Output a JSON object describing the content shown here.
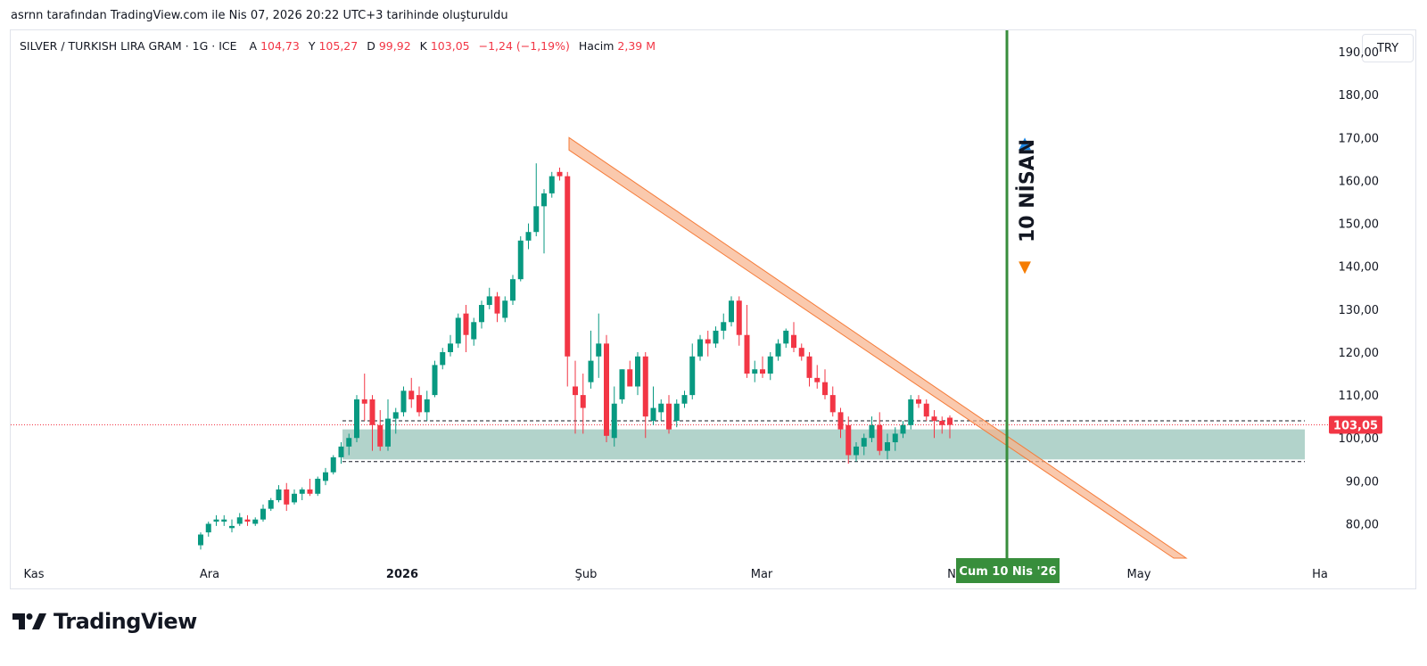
{
  "snapshot_header": "asrnn tarafından TradingView.com ile Nis 07, 2026 20:22 UTC+3 tarihinde oluşturuldu",
  "legend": {
    "symbol": "SILVER / TURKISH LIRA GRAM · 1G · ICE",
    "open_label": "A",
    "open": "104,73",
    "high_label": "Y",
    "high": "105,27",
    "low_label": "D",
    "low": "99,92",
    "close_label": "K",
    "close": "103,05",
    "change": "−1,24 (−1,19%)",
    "volume_label": "Hacim",
    "volume": "2,39 M"
  },
  "currency_button": "TRY",
  "brand": "TradingView",
  "colors": {
    "up": "#089981",
    "down": "#f23645",
    "zone": "#7eb6a8",
    "channel": "#f8b28a",
    "event_line": "#388e3c",
    "price_tag": "#f23645"
  },
  "chart_data": {
    "type": "candlestick",
    "ylim": [
      72,
      195
    ],
    "y_ticks": [
      "80,00",
      "90,00",
      "100,00",
      "110,00",
      "120,00",
      "130,00",
      "140,00",
      "150,00",
      "160,00",
      "170,00",
      "180,00",
      "190,00"
    ],
    "x_ticks": [
      "Kas",
      "Ara",
      "2026",
      "Şub",
      "Mar",
      "N",
      "May",
      "Ha"
    ],
    "last_price_label": "103,05",
    "event_line_label": "Cum 10 Nis '26",
    "event_annotation": "10 NİSAN",
    "support_zone": [
      95,
      102
    ],
    "dashed_levels": [
      104,
      94.5
    ],
    "candles": [
      {
        "o": 75,
        "h": 78,
        "l": 74,
        "c": 77.5
      },
      {
        "o": 78,
        "h": 80.5,
        "l": 77,
        "c": 80
      },
      {
        "o": 80.5,
        "h": 82,
        "l": 79.5,
        "c": 81
      },
      {
        "o": 80.5,
        "h": 82,
        "l": 79.5,
        "c": 81
      },
      {
        "o": 79,
        "h": 81,
        "l": 78,
        "c": 79.5
      },
      {
        "o": 80,
        "h": 82.5,
        "l": 79.5,
        "c": 81.5
      },
      {
        "o": 81,
        "h": 82,
        "l": 79.5,
        "c": 80.5
      },
      {
        "o": 80,
        "h": 81.5,
        "l": 79.5,
        "c": 81
      },
      {
        "o": 81,
        "h": 84.5,
        "l": 80.5,
        "c": 83.5
      },
      {
        "o": 83.5,
        "h": 86,
        "l": 83,
        "c": 85.5
      },
      {
        "o": 85.5,
        "h": 89,
        "l": 85,
        "c": 88
      },
      {
        "o": 88,
        "h": 89.5,
        "l": 83,
        "c": 84.5
      },
      {
        "o": 85,
        "h": 88,
        "l": 84.5,
        "c": 87
      },
      {
        "o": 87,
        "h": 88.5,
        "l": 85.5,
        "c": 88
      },
      {
        "o": 88,
        "h": 90.5,
        "l": 86.5,
        "c": 87
      },
      {
        "o": 87,
        "h": 91,
        "l": 86.5,
        "c": 90.5
      },
      {
        "o": 90,
        "h": 93,
        "l": 89,
        "c": 92
      },
      {
        "o": 92,
        "h": 96,
        "l": 91.5,
        "c": 95.5
      },
      {
        "o": 95.5,
        "h": 99,
        "l": 94,
        "c": 98
      },
      {
        "o": 98,
        "h": 101,
        "l": 96,
        "c": 100
      },
      {
        "o": 100,
        "h": 110,
        "l": 99,
        "c": 109
      },
      {
        "o": 109,
        "h": 115,
        "l": 104,
        "c": 108
      },
      {
        "o": 109,
        "h": 110,
        "l": 97,
        "c": 103
      },
      {
        "o": 103,
        "h": 106.5,
        "l": 97,
        "c": 98
      },
      {
        "o": 98,
        "h": 109,
        "l": 97,
        "c": 104.5
      },
      {
        "o": 104.5,
        "h": 107,
        "l": 101,
        "c": 106
      },
      {
        "o": 106,
        "h": 112,
        "l": 105,
        "c": 111
      },
      {
        "o": 111,
        "h": 114,
        "l": 107,
        "c": 109
      },
      {
        "o": 110,
        "h": 112,
        "l": 105,
        "c": 106
      },
      {
        "o": 106,
        "h": 111,
        "l": 104,
        "c": 109
      },
      {
        "o": 110,
        "h": 118,
        "l": 109.5,
        "c": 117
      },
      {
        "o": 117,
        "h": 121,
        "l": 116,
        "c": 120
      },
      {
        "o": 120,
        "h": 124,
        "l": 119,
        "c": 122
      },
      {
        "o": 122,
        "h": 129,
        "l": 121,
        "c": 128
      },
      {
        "o": 129,
        "h": 131,
        "l": 120,
        "c": 124
      },
      {
        "o": 123,
        "h": 128,
        "l": 121.5,
        "c": 127
      },
      {
        "o": 127,
        "h": 132,
        "l": 125.5,
        "c": 131
      },
      {
        "o": 131,
        "h": 135,
        "l": 130,
        "c": 133
      },
      {
        "o": 133,
        "h": 134,
        "l": 127,
        "c": 129
      },
      {
        "o": 128,
        "h": 133,
        "l": 127,
        "c": 132
      },
      {
        "o": 132,
        "h": 138,
        "l": 131,
        "c": 137
      },
      {
        "o": 137,
        "h": 147,
        "l": 136.5,
        "c": 146
      },
      {
        "o": 146,
        "h": 150,
        "l": 144,
        "c": 148
      },
      {
        "o": 148,
        "h": 164,
        "l": 147,
        "c": 154
      },
      {
        "o": 154,
        "h": 158,
        "l": 143,
        "c": 157
      },
      {
        "o": 157,
        "h": 162,
        "l": 156,
        "c": 161
      },
      {
        "o": 162,
        "h": 163,
        "l": 160,
        "c": 161
      },
      {
        "o": 161,
        "h": 162,
        "l": 112,
        "c": 119
      },
      {
        "o": 112,
        "h": 118,
        "l": 101,
        "c": 110
      },
      {
        "o": 110,
        "h": 115,
        "l": 101,
        "c": 107
      },
      {
        "o": 113,
        "h": 125,
        "l": 111.5,
        "c": 118
      },
      {
        "o": 119,
        "h": 129,
        "l": 114,
        "c": 122
      },
      {
        "o": 122,
        "h": 124,
        "l": 99,
        "c": 100.5
      },
      {
        "o": 100,
        "h": 112,
        "l": 98,
        "c": 108
      },
      {
        "o": 109,
        "h": 116,
        "l": 108,
        "c": 116
      },
      {
        "o": 116,
        "h": 118,
        "l": 112,
        "c": 112
      },
      {
        "o": 112,
        "h": 120,
        "l": 110,
        "c": 119
      },
      {
        "o": 119,
        "h": 120,
        "l": 100,
        "c": 105
      },
      {
        "o": 104,
        "h": 112,
        "l": 103,
        "c": 107
      },
      {
        "o": 106,
        "h": 109,
        "l": 104,
        "c": 108
      },
      {
        "o": 108,
        "h": 110,
        "l": 101,
        "c": 102
      },
      {
        "o": 104,
        "h": 109,
        "l": 102.5,
        "c": 108
      },
      {
        "o": 108,
        "h": 111,
        "l": 107,
        "c": 110
      },
      {
        "o": 110,
        "h": 122,
        "l": 109,
        "c": 119
      },
      {
        "o": 119,
        "h": 124,
        "l": 118,
        "c": 123
      },
      {
        "o": 123,
        "h": 125,
        "l": 119,
        "c": 122
      },
      {
        "o": 122,
        "h": 126,
        "l": 121,
        "c": 125
      },
      {
        "o": 125,
        "h": 129,
        "l": 123,
        "c": 127
      },
      {
        "o": 127,
        "h": 133,
        "l": 126,
        "c": 132
      },
      {
        "o": 132,
        "h": 133,
        "l": 121.5,
        "c": 124
      },
      {
        "o": 124,
        "h": 131,
        "l": 114,
        "c": 115
      },
      {
        "o": 115,
        "h": 118,
        "l": 113,
        "c": 116
      },
      {
        "o": 116,
        "h": 119,
        "l": 114,
        "c": 115
      },
      {
        "o": 115,
        "h": 120,
        "l": 113.5,
        "c": 119
      },
      {
        "o": 119,
        "h": 123,
        "l": 118,
        "c": 122
      },
      {
        "o": 122,
        "h": 125.5,
        "l": 121,
        "c": 125
      },
      {
        "o": 124,
        "h": 127,
        "l": 120,
        "c": 121
      },
      {
        "o": 121,
        "h": 122,
        "l": 118,
        "c": 119
      },
      {
        "o": 119,
        "h": 120,
        "l": 112,
        "c": 114
      },
      {
        "o": 114,
        "h": 117,
        "l": 111.5,
        "c": 113
      },
      {
        "o": 113,
        "h": 116,
        "l": 109,
        "c": 110
      },
      {
        "o": 110,
        "h": 112,
        "l": 105,
        "c": 106
      },
      {
        "o": 106,
        "h": 107,
        "l": 100,
        "c": 102
      },
      {
        "o": 103,
        "h": 105,
        "l": 94,
        "c": 96
      },
      {
        "o": 96,
        "h": 99,
        "l": 94.5,
        "c": 98
      },
      {
        "o": 98,
        "h": 101,
        "l": 96,
        "c": 100
      },
      {
        "o": 100,
        "h": 105,
        "l": 99,
        "c": 103
      },
      {
        "o": 103,
        "h": 106,
        "l": 96,
        "c": 97
      },
      {
        "o": 97,
        "h": 101,
        "l": 95,
        "c": 99
      },
      {
        "o": 99,
        "h": 102.5,
        "l": 97,
        "c": 101
      },
      {
        "o": 101,
        "h": 104,
        "l": 100,
        "c": 103
      },
      {
        "o": 103,
        "h": 110,
        "l": 102,
        "c": 109
      },
      {
        "o": 109,
        "h": 110,
        "l": 107,
        "c": 108
      },
      {
        "o": 108,
        "h": 109,
        "l": 104,
        "c": 105
      },
      {
        "o": 105,
        "h": 106.5,
        "l": 100,
        "c": 104
      },
      {
        "o": 104,
        "h": 105,
        "l": 101,
        "c": 103
      },
      {
        "o": 104.73,
        "h": 105.27,
        "l": 99.92,
        "c": 103.05
      }
    ]
  }
}
